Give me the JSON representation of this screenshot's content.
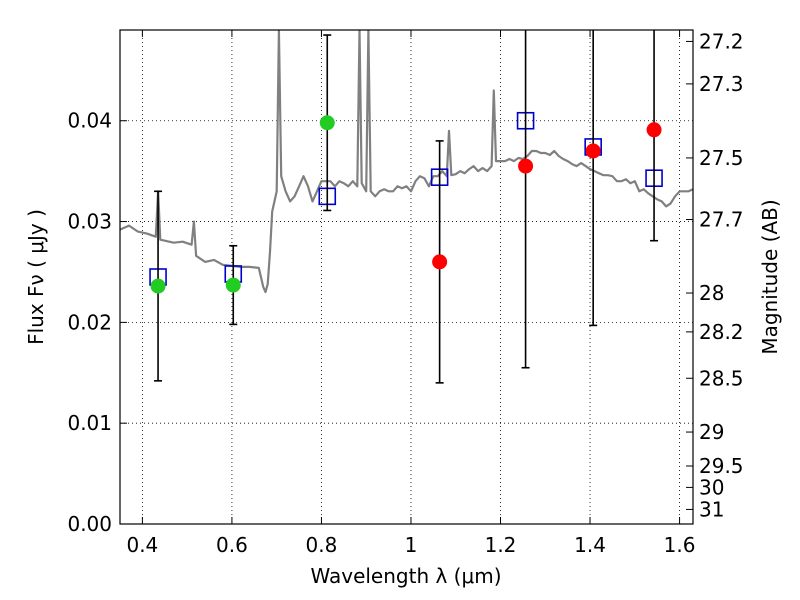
{
  "chart_data": {
    "type": "scatter",
    "xlabel": "Wavelength  λ (μm)",
    "ylabel": "Flux  Fν  ( μJy )",
    "y2label": "Magnitude (AB)",
    "xlim": [
      0.35,
      1.63
    ],
    "ylim": [
      0.0,
      0.049
    ],
    "grid": true,
    "x_ticks": [
      {
        "value": 0.4,
        "label": "0.4"
      },
      {
        "value": 0.6,
        "label": "0.6"
      },
      {
        "value": 0.8,
        "label": "0.8"
      },
      {
        "value": 1.0,
        "label": "1"
      },
      {
        "value": 1.2,
        "label": "1.2"
      },
      {
        "value": 1.4,
        "label": "1.4"
      },
      {
        "value": 1.6,
        "label": "1.6"
      }
    ],
    "y_ticks": [
      {
        "value": 0.0,
        "label": "0.00"
      },
      {
        "value": 0.01,
        "label": "0.01"
      },
      {
        "value": 0.02,
        "label": "0.02"
      },
      {
        "value": 0.03,
        "label": "0.03"
      },
      {
        "value": 0.04,
        "label": "0.04"
      }
    ],
    "y2_ticks": [
      {
        "value": 27.2,
        "label": "27.2"
      },
      {
        "value": 27.3,
        "label": "27.3"
      },
      {
        "value": 27.5,
        "label": "27.5"
      },
      {
        "value": 27.7,
        "label": "27.7"
      },
      {
        "value": 28.0,
        "label": "28"
      },
      {
        "value": 28.2,
        "label": "28.2"
      },
      {
        "value": 28.5,
        "label": "28.5"
      },
      {
        "value": 29.0,
        "label": "29"
      },
      {
        "value": 29.5,
        "label": "29.5"
      },
      {
        "value": 30.0,
        "label": "30"
      },
      {
        "value": 31.0,
        "label": "31"
      }
    ],
    "series": [
      {
        "kind": "sed_model",
        "color": "#808080",
        "x": [
          0.35,
          0.37,
          0.39,
          0.41,
          0.43,
          0.435,
          0.44,
          0.45,
          0.47,
          0.49,
          0.51,
          0.515,
          0.52,
          0.54,
          0.56,
          0.58,
          0.6,
          0.62,
          0.64,
          0.66,
          0.67,
          0.675,
          0.68,
          0.685,
          0.69,
          0.7,
          0.705,
          0.71,
          0.72,
          0.73,
          0.74,
          0.75,
          0.76,
          0.77,
          0.78,
          0.79,
          0.8,
          0.81,
          0.82,
          0.83,
          0.84,
          0.85,
          0.86,
          0.87,
          0.88,
          0.885,
          0.89,
          0.9,
          0.905,
          0.91,
          0.92,
          0.93,
          0.94,
          0.95,
          0.96,
          0.97,
          0.98,
          0.99,
          1.0,
          1.01,
          1.02,
          1.03,
          1.04,
          1.05,
          1.06,
          1.07,
          1.08,
          1.085,
          1.09,
          1.1,
          1.11,
          1.12,
          1.13,
          1.14,
          1.15,
          1.16,
          1.17,
          1.18,
          1.185,
          1.19,
          1.2,
          1.21,
          1.22,
          1.23,
          1.24,
          1.25,
          1.26,
          1.27,
          1.28,
          1.29,
          1.3,
          1.31,
          1.32,
          1.33,
          1.34,
          1.35,
          1.36,
          1.37,
          1.38,
          1.39,
          1.4,
          1.41,
          1.42,
          1.43,
          1.44,
          1.45,
          1.46,
          1.47,
          1.48,
          1.49,
          1.5,
          1.51,
          1.52,
          1.53,
          1.54,
          1.55,
          1.56,
          1.57,
          1.58,
          1.59,
          1.6,
          1.61,
          1.62,
          1.63
        ],
        "y": [
          0.0292,
          0.0296,
          0.029,
          0.0288,
          0.0285,
          0.033,
          0.0282,
          0.0281,
          0.0279,
          0.028,
          0.0277,
          0.03,
          0.0266,
          0.026,
          0.0262,
          0.0257,
          0.0256,
          0.0255,
          0.0255,
          0.0254,
          0.0235,
          0.023,
          0.0238,
          0.027,
          0.031,
          0.033,
          0.049,
          0.0345,
          0.033,
          0.032,
          0.0325,
          0.0335,
          0.0345,
          0.0335,
          0.032,
          0.033,
          0.034,
          0.034,
          0.034,
          0.0335,
          0.034,
          0.0338,
          0.0335,
          0.034,
          0.0335,
          0.049,
          0.0338,
          0.033,
          0.049,
          0.033,
          0.0325,
          0.033,
          0.0332,
          0.033,
          0.033,
          0.0335,
          0.0333,
          0.0335,
          0.033,
          0.034,
          0.0345,
          0.0343,
          0.0335,
          0.0345,
          0.0345,
          0.035,
          0.0345,
          0.039,
          0.0346,
          0.0347,
          0.035,
          0.0348,
          0.0352,
          0.0355,
          0.035,
          0.0353,
          0.035,
          0.0355,
          0.043,
          0.036,
          0.036,
          0.036,
          0.0362,
          0.036,
          0.0363,
          0.0362,
          0.0365,
          0.037,
          0.037,
          0.0368,
          0.0368,
          0.0366,
          0.037,
          0.0365,
          0.0362,
          0.036,
          0.0357,
          0.0355,
          0.0358,
          0.0355,
          0.0352,
          0.035,
          0.0348,
          0.0346,
          0.0346,
          0.0345,
          0.034,
          0.034,
          0.0342,
          0.0338,
          0.034,
          0.033,
          0.0332,
          0.0328,
          0.0325,
          0.0322,
          0.032,
          0.0315,
          0.0318,
          0.0325,
          0.033,
          0.033,
          0.033,
          0.0332
        ]
      },
      {
        "kind": "model_photometry",
        "marker": "open-square",
        "color": "#0000cc",
        "points": [
          {
            "x": 0.435,
            "y": 0.0245
          },
          {
            "x": 0.603,
            "y": 0.0248
          },
          {
            "x": 0.813,
            "y": 0.0325
          },
          {
            "x": 1.064,
            "y": 0.0344
          },
          {
            "x": 1.256,
            "y": 0.04
          },
          {
            "x": 1.407,
            "y": 0.0374
          },
          {
            "x": 1.543,
            "y": 0.0343
          }
        ]
      },
      {
        "kind": "observed_bands",
        "marker": "filled-circle",
        "color": "#22cc22",
        "points": [
          {
            "x": 0.435,
            "y": 0.0236,
            "err": 0.0094
          },
          {
            "x": 0.603,
            "y": 0.0237,
            "err": 0.0039
          },
          {
            "x": 0.813,
            "y": 0.0398,
            "err": 0.0087
          }
        ]
      },
      {
        "kind": "observed_bands",
        "marker": "filled-circle",
        "color": "#ff0000",
        "points": [
          {
            "x": 1.064,
            "y": 0.026,
            "err": 0.012
          },
          {
            "x": 1.256,
            "y": 0.0355,
            "err": 0.02
          },
          {
            "x": 1.407,
            "y": 0.037,
            "err": 0.0173
          },
          {
            "x": 1.543,
            "y": 0.0391,
            "err": 0.011
          }
        ]
      }
    ]
  }
}
